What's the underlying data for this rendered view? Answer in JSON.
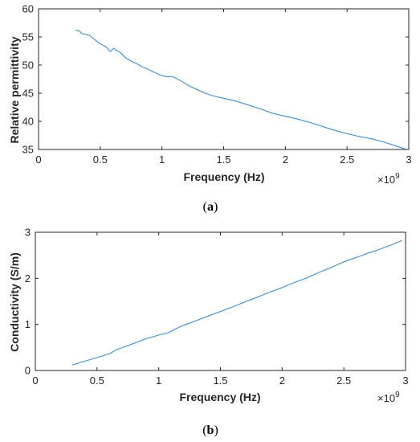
{
  "colors": {
    "line": "#3b8fd4",
    "axis": "#262626",
    "background": "#ffffff"
  },
  "chart_data": [
    {
      "type": "line",
      "caption_open": "(",
      "caption_letter": "a",
      "caption_close": ")",
      "xlabel": "Frequency (Hz)",
      "ylabel": "Relative permittivity",
      "x_multiplier": "×10",
      "x_multiplier_exp": "9",
      "xlim": [
        0,
        3
      ],
      "ylim": [
        35,
        60
      ],
      "xticks": [
        0,
        0.5,
        1,
        1.5,
        2,
        2.5,
        3
      ],
      "yticks": [
        35,
        40,
        45,
        50,
        55,
        60
      ],
      "xtick_labels": [
        "0",
        "0.5",
        "1",
        "1.5",
        "2",
        "2.5",
        "3"
      ],
      "ytick_labels": [
        "35",
        "40",
        "45",
        "50",
        "55",
        "60"
      ],
      "grid": false,
      "series": [
        {
          "x": [
            0.3,
            0.33,
            0.35,
            0.38,
            0.42,
            0.45,
            0.5,
            0.55,
            0.58,
            0.61,
            0.63,
            0.66,
            0.7,
            0.75,
            0.8,
            0.85,
            0.9,
            0.95,
            1.0,
            1.05,
            1.08,
            1.12,
            1.17,
            1.22,
            1.28,
            1.35,
            1.42,
            1.5,
            1.6,
            1.7,
            1.8,
            1.9,
            2.0,
            2.1,
            2.2,
            2.3,
            2.4,
            2.5,
            2.6,
            2.7,
            2.8,
            2.9,
            2.97
          ],
          "y": [
            56.2,
            56.1,
            55.6,
            55.5,
            55.2,
            54.6,
            53.8,
            53.2,
            52.4,
            53.0,
            52.6,
            52.3,
            51.4,
            50.7,
            50.2,
            49.6,
            49.1,
            48.6,
            48.1,
            47.9,
            48.0,
            47.6,
            47.0,
            46.3,
            45.7,
            45.0,
            44.5,
            44.1,
            43.6,
            42.9,
            42.2,
            41.4,
            40.9,
            40.4,
            39.8,
            39.1,
            38.4,
            37.8,
            37.3,
            36.9,
            36.3,
            35.6,
            35.1
          ]
        }
      ]
    },
    {
      "type": "line",
      "caption_open": "(",
      "caption_letter": "b",
      "caption_close": ")",
      "xlabel": "Frequency (Hz)",
      "ylabel": "Conductivity (S/m)",
      "x_multiplier": "×10",
      "x_multiplier_exp": "9",
      "xlim": [
        0,
        3
      ],
      "ylim": [
        0,
        3
      ],
      "xticks": [
        0,
        0.5,
        1,
        1.5,
        2,
        2.5,
        3
      ],
      "yticks": [
        0,
        1,
        2,
        3
      ],
      "xtick_labels": [
        "0",
        "0.5",
        "1",
        "1.5",
        "2",
        "2.5",
        "3"
      ],
      "ytick_labels": [
        "0",
        "1",
        "2",
        "3"
      ],
      "grid": false,
      "series": [
        {
          "x": [
            0.3,
            0.4,
            0.5,
            0.6,
            0.65,
            0.7,
            0.8,
            0.9,
            1.0,
            1.05,
            1.08,
            1.12,
            1.2,
            1.3,
            1.4,
            1.5,
            1.6,
            1.7,
            1.8,
            1.9,
            2.0,
            2.1,
            2.2,
            2.3,
            2.4,
            2.5,
            2.6,
            2.7,
            2.8,
            2.9,
            2.97
          ],
          "y": [
            0.12,
            0.2,
            0.28,
            0.36,
            0.44,
            0.49,
            0.59,
            0.69,
            0.77,
            0.8,
            0.82,
            0.88,
            0.98,
            1.08,
            1.18,
            1.28,
            1.38,
            1.49,
            1.59,
            1.7,
            1.8,
            1.91,
            2.01,
            2.13,
            2.24,
            2.36,
            2.45,
            2.55,
            2.64,
            2.74,
            2.82
          ]
        }
      ]
    }
  ]
}
